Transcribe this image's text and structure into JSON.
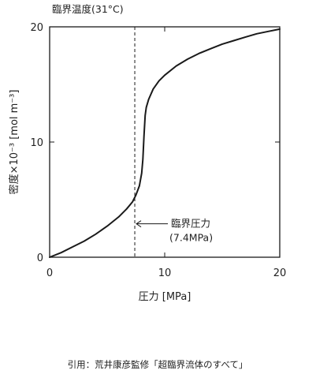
{
  "chart_data": {
    "type": "line",
    "title": "臨界温度(31°C)",
    "xlabel": "圧力 [MPa]",
    "ylabel": "密度×10⁻³ [mol m⁻³]",
    "xlim": [
      0,
      20
    ],
    "ylim": [
      0,
      20
    ],
    "xticks": [
      {
        "value": 0,
        "label": "0"
      },
      {
        "value": 10,
        "label": "10"
      },
      {
        "value": 20,
        "label": "20"
      }
    ],
    "yticks": [
      {
        "value": 0,
        "label": "0"
      },
      {
        "value": 10,
        "label": "10"
      },
      {
        "value": 20,
        "label": "20"
      }
    ],
    "grid": false,
    "legend": "none",
    "line_color": "#1a1a1a",
    "series": [
      {
        "x": [
          0,
          1,
          2,
          3,
          4,
          5,
          6,
          6.7,
          7.2,
          7.5,
          7.8,
          8.0,
          8.1,
          8.2,
          8.3,
          8.4,
          8.6,
          9.0,
          9.5,
          10,
          11,
          12,
          13,
          14,
          15,
          16,
          17,
          18,
          19,
          20
        ],
        "y": [
          0,
          0.4,
          0.9,
          1.4,
          2.0,
          2.7,
          3.5,
          4.2,
          4.8,
          5.4,
          6.2,
          7.3,
          8.5,
          10.5,
          12.3,
          13.0,
          13.7,
          14.6,
          15.3,
          15.8,
          16.6,
          17.2,
          17.7,
          18.1,
          18.5,
          18.8,
          19.1,
          19.4,
          19.6,
          19.8
        ]
      }
    ],
    "critical_pressure_line": {
      "x": 7.4,
      "style": "dashed",
      "label_line1": "臨界圧力",
      "label_line2": "(7.4MPa)",
      "label_y": 2.9
    }
  },
  "caption": "引用：荒井康彦監修「超臨界流体のすべて」"
}
